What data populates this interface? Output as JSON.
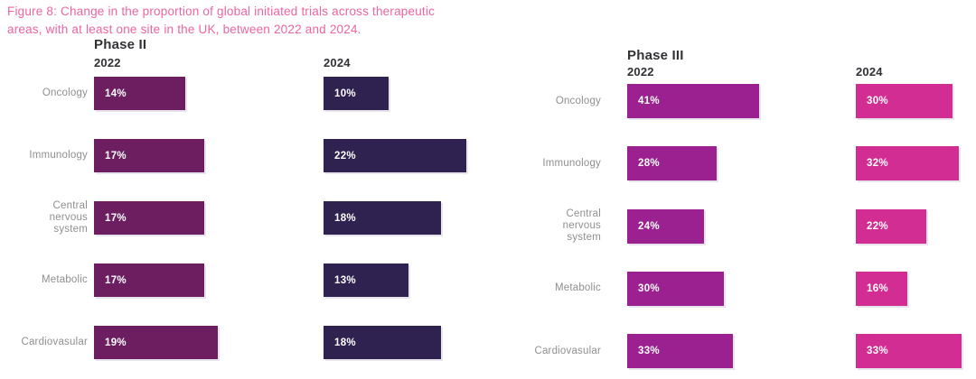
{
  "figure": {
    "title_line1": "Figure 8: Change in the proportion of global initiated trials across therapeutic",
    "title_line2": "areas, with at least one site in the UK, between 2022 and 2024."
  },
  "colors": {
    "background": "#ffffff",
    "title_pink": "#ee64a2",
    "heading_text": "#333036",
    "category_label_gray": "#8f8f8f",
    "value_label_white": "#ffffff",
    "phase_ii_2022_bar": "#6d1e61",
    "phase_ii_2024_bar": "#2f2250",
    "phase_iii_2022_bar": "#9c2190",
    "phase_iii_2024_bar": "#d22d92"
  },
  "chart_data": [
    {
      "type": "bar",
      "orientation": "horizontal",
      "title": "Phase II",
      "unit": "%",
      "legend_position": "column headers above bars",
      "categories": [
        "Oncology",
        "Immunology",
        "Central\nnervous\nsystem",
        "Metabolic",
        "Cardiovasular"
      ],
      "series": [
        {
          "name": "2022",
          "color_key": "phase_ii_2022_bar",
          "values": [
            14,
            17,
            17,
            17,
            19
          ]
        },
        {
          "name": "2024",
          "color_key": "phase_ii_2024_bar",
          "values": [
            10,
            22,
            18,
            13,
            18
          ]
        }
      ]
    },
    {
      "type": "bar",
      "orientation": "horizontal",
      "title": "Phase III",
      "unit": "%",
      "legend_position": "column headers above bars",
      "categories": [
        "Oncology",
        "Immunology",
        "Central\nnervous\nsystem",
        "Metabolic",
        "Cardiovasular"
      ],
      "series": [
        {
          "name": "2022",
          "color_key": "phase_iii_2022_bar",
          "values": [
            41,
            28,
            24,
            30,
            33
          ]
        },
        {
          "name": "2024",
          "color_key": "phase_iii_2024_bar",
          "values": [
            30,
            32,
            22,
            16,
            33
          ]
        }
      ]
    }
  ]
}
